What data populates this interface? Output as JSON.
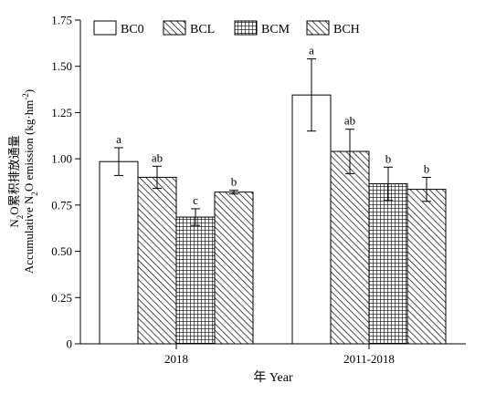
{
  "chart_data": {
    "type": "bar",
    "xlabel": "年 Year",
    "ylabel_line1_parts": [
      "N",
      "2",
      "O累积排放通量"
    ],
    "ylabel_line2_parts": [
      "Accumulative N",
      "2",
      "O emission (kg·hm",
      "-2",
      ")"
    ],
    "ylim": [
      0,
      1.75
    ],
    "yticks": [
      0,
      0.25,
      0.5,
      0.75,
      1.0,
      1.25,
      1.5,
      1.75
    ],
    "ytick_labels": [
      "0",
      "0.25",
      "0.50",
      "0.75",
      "1.00",
      "1.25",
      "1.50",
      "1.75"
    ],
    "categories": [
      "2018",
      "2011-2018"
    ],
    "legend_position": "top",
    "series": [
      {
        "name": "BC0",
        "pattern": "none",
        "values": [
          0.985,
          1.345
        ],
        "errors": [
          0.075,
          0.195
        ],
        "letters": [
          "a",
          "a"
        ]
      },
      {
        "name": "BCL",
        "pattern": "diagonal",
        "values": [
          0.9,
          1.04
        ],
        "errors": [
          0.06,
          0.12
        ],
        "letters": [
          "ab",
          "ab"
        ]
      },
      {
        "name": "BCM",
        "pattern": "grid",
        "values": [
          0.685,
          0.865
        ],
        "errors": [
          0.045,
          0.09
        ],
        "letters": [
          "c",
          "b"
        ]
      },
      {
        "name": "BCH",
        "pattern": "diagonal",
        "values": [
          0.82,
          0.835
        ],
        "errors": [
          0.01,
          0.065
        ],
        "letters": [
          "b",
          "b"
        ]
      }
    ]
  }
}
